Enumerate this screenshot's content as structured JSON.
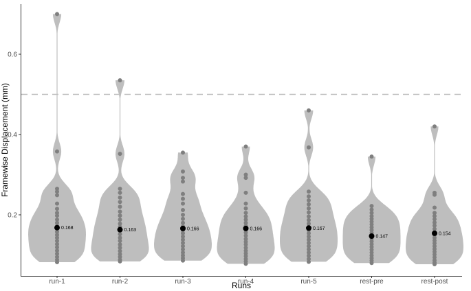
{
  "chart_data": {
    "type": "violin",
    "xlabel": "Runs",
    "ylabel": "Framewise Displacement (mm)",
    "ylim": [
      0.07,
      0.72
    ],
    "yticks": [
      0.2,
      0.4,
      0.6
    ],
    "ytick_labels": [
      "0.2",
      "0.4",
      "0.6"
    ],
    "reference_line": 0.5,
    "colors": {
      "violin": "#bebebe",
      "point": "#7f7f7f",
      "mean": "#000000",
      "reference": "#bdbdbd"
    },
    "categories": [
      "run-1",
      "run-2",
      "run-3",
      "run-4",
      "run-5",
      "rest-pre",
      "rest-post"
    ],
    "means": [
      0.168,
      0.163,
      0.166,
      0.166,
      0.167,
      0.147,
      0.154
    ],
    "mean_labels": [
      "0.168",
      "0.163",
      "0.166",
      "0.166",
      "0.167",
      "0.147",
      "0.154"
    ],
    "points": [
      [
        0.7,
        0.358,
        0.265,
        0.258,
        0.249,
        0.228,
        0.215,
        0.205,
        0.198,
        0.188,
        0.18,
        0.172,
        0.165,
        0.158,
        0.15,
        0.143,
        0.135,
        0.127,
        0.119,
        0.111,
        0.103,
        0.095,
        0.088,
        0.082
      ],
      [
        0.535,
        0.352,
        0.265,
        0.255,
        0.243,
        0.232,
        0.22,
        0.208,
        0.198,
        0.188,
        0.178,
        0.17,
        0.16,
        0.152,
        0.143,
        0.135,
        0.126,
        0.118,
        0.11,
        0.102,
        0.095,
        0.088,
        0.084
      ],
      [
        0.355,
        0.308,
        0.292,
        0.283,
        0.252,
        0.24,
        0.228,
        0.212,
        0.2,
        0.19,
        0.18,
        0.171,
        0.162,
        0.154,
        0.146,
        0.138,
        0.13,
        0.122,
        0.114,
        0.106,
        0.099,
        0.092,
        0.086
      ],
      [
        0.37,
        0.3,
        0.292,
        0.255,
        0.228,
        0.216,
        0.205,
        0.196,
        0.188,
        0.18,
        0.172,
        0.164,
        0.156,
        0.148,
        0.14,
        0.133,
        0.126,
        0.118,
        0.111,
        0.104,
        0.097,
        0.09,
        0.084,
        0.078
      ],
      [
        0.46,
        0.368,
        0.258,
        0.246,
        0.236,
        0.226,
        0.216,
        0.206,
        0.196,
        0.187,
        0.178,
        0.17,
        0.162,
        0.154,
        0.146,
        0.138,
        0.13,
        0.122,
        0.114,
        0.106,
        0.098,
        0.09,
        0.083
      ],
      [
        0.345,
        0.222,
        0.213,
        0.205,
        0.197,
        0.19,
        0.183,
        0.176,
        0.169,
        0.162,
        0.155,
        0.148,
        0.141,
        0.134,
        0.127,
        0.12,
        0.113,
        0.106,
        0.099,
        0.092,
        0.086,
        0.08
      ],
      [
        0.42,
        0.255,
        0.25,
        0.218,
        0.205,
        0.197,
        0.189,
        0.181,
        0.173,
        0.165,
        0.157,
        0.15,
        0.143,
        0.136,
        0.129,
        0.122,
        0.115,
        0.108,
        0.101,
        0.094,
        0.087,
        0.081,
        0.077
      ]
    ]
  }
}
